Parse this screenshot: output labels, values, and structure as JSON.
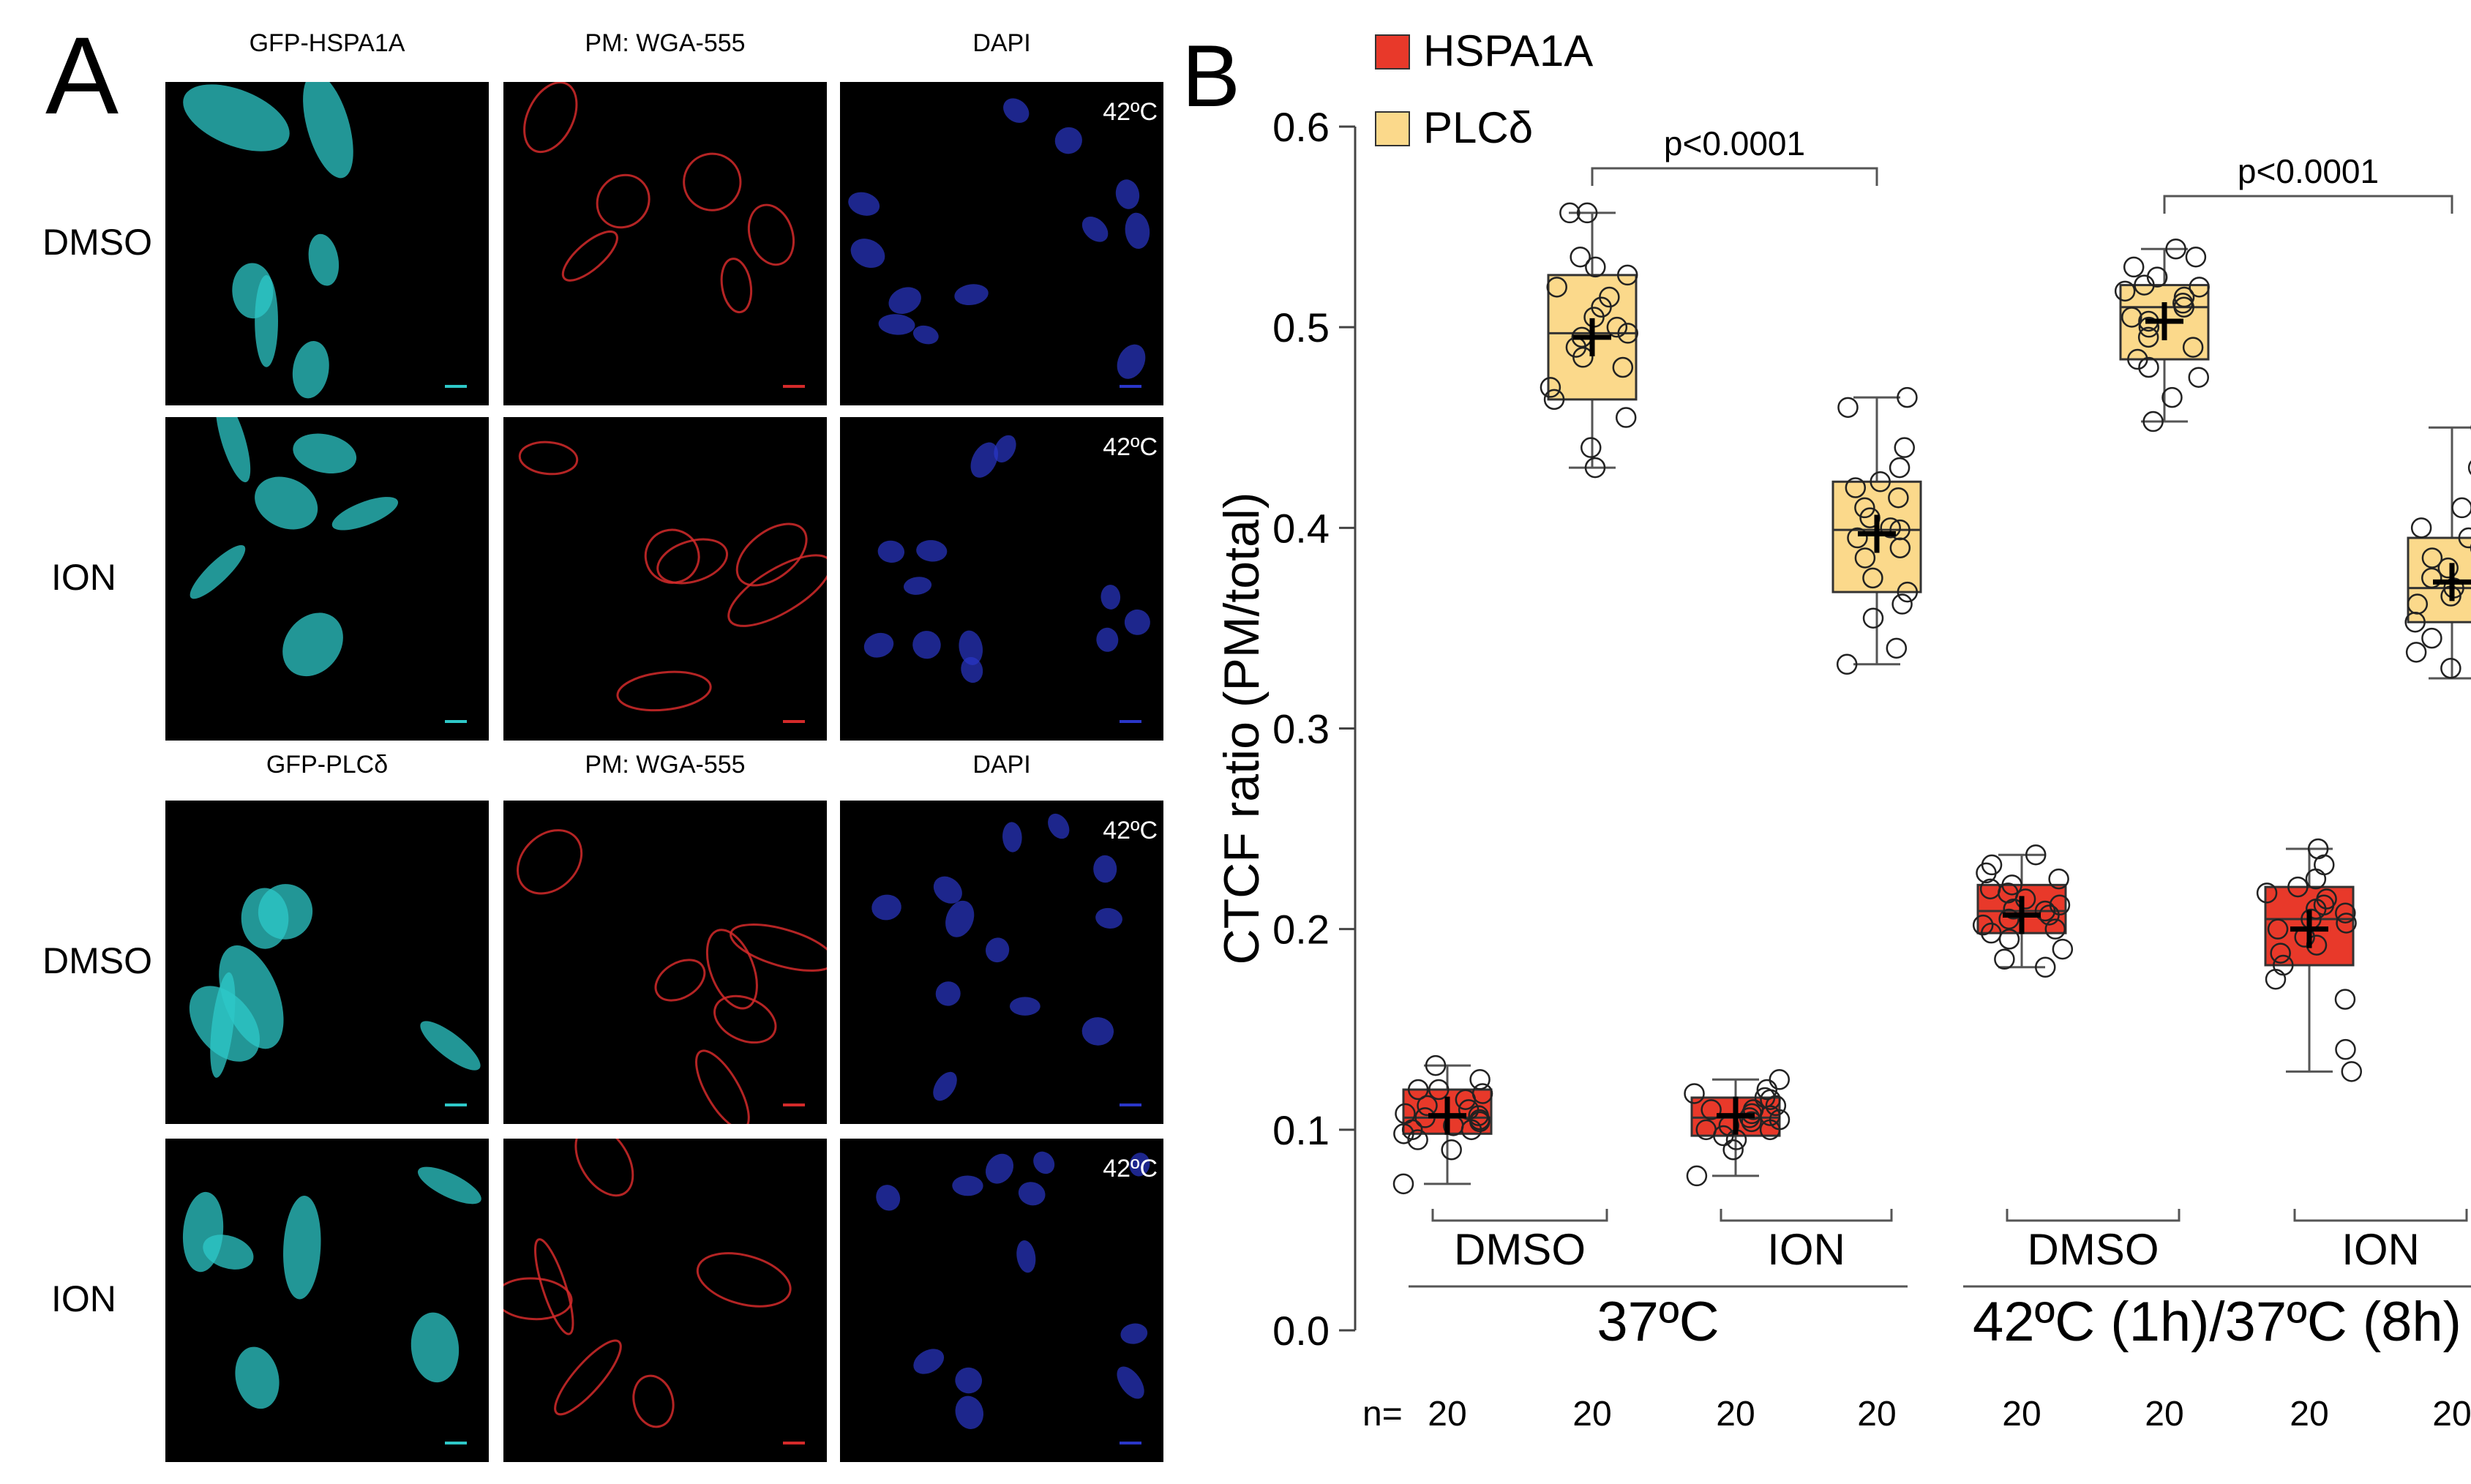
{
  "panel_a": {
    "letter": "A",
    "groups": [
      {
        "headers": [
          "GFP-HSPA1A",
          "PM: WGA-555",
          "DAPI"
        ],
        "rows": [
          {
            "label": "DMSO",
            "temp": "42ºC"
          },
          {
            "label": "ION",
            "temp": "42ºC"
          }
        ]
      },
      {
        "headers": [
          "GFP-PLCδ",
          "PM: WGA-555",
          "DAPI"
        ],
        "rows": [
          {
            "label": "DMSO",
            "temp": "42ºC"
          },
          {
            "label": "ION",
            "temp": "42ºC"
          }
        ]
      }
    ],
    "channel_colors": {
      "gfp": "#2ec8c8",
      "pm": "#d42a2a",
      "dapi": "#2a36c8"
    }
  },
  "chart_data": {
    "type": "box",
    "panel_letter": "B",
    "title": "",
    "ylabel": "CTCF ratio (PM/total)",
    "ylim": [
      0.0,
      0.6
    ],
    "yticks": [
      "0.0",
      "0.1",
      "0.2",
      "0.3",
      "0.4",
      "0.5",
      "0.6"
    ],
    "legend": [
      {
        "name": "HSPA1A",
        "color": "#e8392a"
      },
      {
        "name": "PLCδ",
        "color": "#fbd98b"
      }
    ],
    "legend_position": "top-left",
    "groups": [
      {
        "label": "37ºC",
        "subgroups": [
          "DMSO",
          "ION"
        ]
      },
      {
        "label": "42ºC (1h)/37ºC (8h)",
        "subgroups": [
          "DMSO",
          "ION"
        ]
      }
    ],
    "boxes": [
      {
        "series": "HSPA1A",
        "group": "37ºC",
        "treatment": "DMSO",
        "q1": 0.098,
        "median": 0.106,
        "q3": 0.12,
        "whisker_low": 0.073,
        "whisker_high": 0.132,
        "mean": 0.107,
        "n": "20",
        "points": [
          0.073,
          0.09,
          0.095,
          0.098,
          0.1,
          0.1,
          0.102,
          0.104,
          0.105,
          0.106,
          0.107,
          0.108,
          0.11,
          0.112,
          0.115,
          0.118,
          0.12,
          0.12,
          0.125,
          0.132
        ]
      },
      {
        "series": "PLCδ",
        "group": "37ºC",
        "treatment": "DMSO",
        "q1": 0.464,
        "median": 0.497,
        "q3": 0.526,
        "whisker_low": 0.43,
        "whisker_high": 0.557,
        "mean": 0.495,
        "n": "20",
        "points": [
          0.43,
          0.44,
          0.455,
          0.464,
          0.47,
          0.48,
          0.485,
          0.49,
          0.495,
          0.497,
          0.5,
          0.505,
          0.51,
          0.515,
          0.52,
          0.526,
          0.53,
          0.535,
          0.557,
          0.557
        ]
      },
      {
        "series": "HSPA1A",
        "group": "37ºC",
        "treatment": "ION",
        "q1": 0.097,
        "median": 0.106,
        "q3": 0.116,
        "whisker_low": 0.077,
        "whisker_high": 0.125,
        "mean": 0.107,
        "n": "20",
        "points": [
          0.077,
          0.09,
          0.095,
          0.097,
          0.1,
          0.1,
          0.102,
          0.104,
          0.105,
          0.106,
          0.107,
          0.108,
          0.11,
          0.11,
          0.112,
          0.115,
          0.116,
          0.118,
          0.12,
          0.125
        ]
      },
      {
        "series": "PLCδ",
        "group": "37ºC",
        "treatment": "ION",
        "q1": 0.368,
        "median": 0.399,
        "q3": 0.423,
        "whisker_low": 0.332,
        "whisker_high": 0.465,
        "mean": 0.397,
        "n": "20",
        "points": [
          0.332,
          0.34,
          0.355,
          0.362,
          0.368,
          0.375,
          0.385,
          0.39,
          0.395,
          0.399,
          0.4,
          0.405,
          0.41,
          0.415,
          0.42,
          0.423,
          0.43,
          0.44,
          0.46,
          0.465
        ]
      },
      {
        "series": "HSPA1A",
        "group": "42ºC (1h)/37ºC (8h)",
        "treatment": "DMSO",
        "q1": 0.198,
        "median": 0.209,
        "q3": 0.222,
        "whisker_low": 0.181,
        "whisker_high": 0.237,
        "mean": 0.207,
        "n": "20",
        "points": [
          0.181,
          0.185,
          0.19,
          0.195,
          0.198,
          0.2,
          0.202,
          0.205,
          0.207,
          0.209,
          0.21,
          0.212,
          0.215,
          0.218,
          0.22,
          0.222,
          0.225,
          0.228,
          0.232,
          0.237
        ]
      },
      {
        "series": "PLCδ",
        "group": "42ºC (1h)/37ºC (8h)",
        "treatment": "DMSO",
        "q1": 0.484,
        "median": 0.51,
        "q3": 0.521,
        "whisker_low": 0.453,
        "whisker_high": 0.539,
        "mean": 0.503,
        "n": "20",
        "points": [
          0.453,
          0.465,
          0.475,
          0.48,
          0.484,
          0.49,
          0.495,
          0.5,
          0.503,
          0.505,
          0.51,
          0.512,
          0.515,
          0.518,
          0.52,
          0.521,
          0.525,
          0.53,
          0.535,
          0.539
        ]
      },
      {
        "series": "HSPA1A",
        "group": "42ºC (1h)/37ºC (8h)",
        "treatment": "ION",
        "q1": 0.182,
        "median": 0.205,
        "q3": 0.221,
        "whisker_low": 0.129,
        "whisker_high": 0.24,
        "mean": 0.2,
        "n": "20",
        "points": [
          0.129,
          0.14,
          0.165,
          0.175,
          0.182,
          0.188,
          0.192,
          0.196,
          0.2,
          0.203,
          0.205,
          0.208,
          0.21,
          0.212,
          0.215,
          0.218,
          0.221,
          0.225,
          0.232,
          0.24
        ]
      },
      {
        "series": "PLCδ",
        "group": "42ºC (1h)/37ºC (8h)",
        "treatment": "ION",
        "q1": 0.353,
        "median": 0.37,
        "q3": 0.395,
        "whisker_low": 0.325,
        "whisker_high": 0.45,
        "mean": 0.373,
        "n": "20",
        "points": [
          0.325,
          0.33,
          0.338,
          0.345,
          0.353,
          0.358,
          0.362,
          0.366,
          0.37,
          0.37,
          0.372,
          0.375,
          0.38,
          0.385,
          0.39,
          0.395,
          0.4,
          0.41,
          0.43,
          0.45
        ]
      }
    ],
    "comparisons": [
      {
        "group": "37ºC",
        "between": [
          "DMSO",
          "ION"
        ],
        "series": "PLCδ",
        "label": "p<0.0001"
      },
      {
        "group": "42ºC (1h)/37ºC (8h)",
        "between": [
          "DMSO",
          "ION"
        ],
        "series": "PLCδ",
        "label": "p<0.0001"
      }
    ],
    "n_label": "n="
  }
}
